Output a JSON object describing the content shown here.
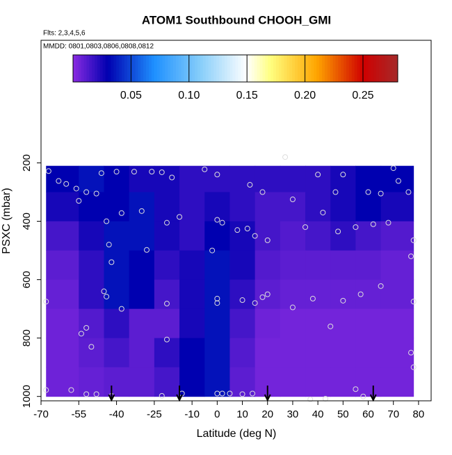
{
  "chart_data": {
    "type": "heatmap",
    "title": "ATOM1 Southbound CHOOH_GMI",
    "subtitle": "Flts: 2,3,4,5,6",
    "annotation": "MMDD: 0801,0803,0806,0808,0812",
    "xlabel": "Latitude (deg N)",
    "ylabel": "PSXC (mbar)",
    "xlim": [
      -70,
      85
    ],
    "ylim": [
      1015,
      -220
    ],
    "xticks": [
      -70,
      -55,
      -40,
      -25,
      -10,
      0,
      10,
      20,
      30,
      40,
      50,
      60,
      70,
      80
    ],
    "yticks": [
      200,
      400,
      600,
      800,
      1000
    ],
    "x_edges": [
      -68,
      -55,
      -45,
      -35,
      -25,
      -15,
      -5,
      5,
      15,
      25,
      35,
      45,
      55,
      65,
      78
    ],
    "y_edges": [
      210,
      300,
      400,
      500,
      600,
      700,
      800,
      900,
      1000
    ],
    "z": [
      [
        0.03,
        0.035,
        0.03,
        0.025,
        0.025,
        0.02,
        0.02,
        0.02,
        0.02,
        0.02,
        0.02,
        0.025,
        0.03,
        0.03
      ],
      [
        0.025,
        0.03,
        0.03,
        0.035,
        0.025,
        0.02,
        0.025,
        0.02,
        0.015,
        0.015,
        0.02,
        0.025,
        0.03,
        0.025
      ],
      [
        0.015,
        0.025,
        0.035,
        0.035,
        0.025,
        0.02,
        0.03,
        0.025,
        0.015,
        0.012,
        0.015,
        0.02,
        0.015,
        0.012
      ],
      [
        0.01,
        0.02,
        0.035,
        0.03,
        0.02,
        0.025,
        0.035,
        0.025,
        0.012,
        0.01,
        0.01,
        0.01,
        0.01,
        0.008
      ],
      [
        0.008,
        0.02,
        0.035,
        0.03,
        0.015,
        0.025,
        0.035,
        0.02,
        0.01,
        0.008,
        0.008,
        0.008,
        0.008,
        0.008
      ],
      [
        0.006,
        0.012,
        0.02,
        0.01,
        0.01,
        0.025,
        0.035,
        0.015,
        0.006,
        0.005,
        0.005,
        0.005,
        0.005,
        0.005
      ],
      [
        0.006,
        0.01,
        0.015,
        0.01,
        0.02,
        0.03,
        0.035,
        0.012,
        0.005,
        0.005,
        0.005,
        0.005,
        0.005,
        0.005
      ],
      [
        0.006,
        0.008,
        0.01,
        0.01,
        0.015,
        0.03,
        0.035,
        0.01,
        0.005,
        0.005,
        0.005,
        0.005,
        0.005,
        0.005
      ]
    ],
    "zlim": [
      0,
      0.28
    ],
    "zticks": [
      0.05,
      {
        "value": 0.1,
        "label": "0.10"
      },
      0.15,
      {
        "value": 0.2,
        "label": "0.20"
      },
      0.25
    ],
    "colormap": [
      [
        0,
        "#8a2be2"
      ],
      [
        0.03,
        "#0000b0"
      ],
      [
        0.07,
        "#1e90ff"
      ],
      [
        0.11,
        "#87cefa"
      ],
      [
        0.15,
        "#ffffff"
      ],
      [
        0.17,
        "#ffff80"
      ],
      [
        0.21,
        "#ffa500"
      ],
      [
        0.25,
        "#d00000"
      ],
      [
        0.28,
        "#a52a2a"
      ]
    ],
    "points": {
      "x": [
        -67,
        -63,
        -60,
        -56,
        -55,
        -52,
        -48,
        -46,
        -44,
        -43,
        -42,
        -40,
        -38,
        -33,
        -30,
        -28,
        -26,
        -22,
        -20,
        -18,
        -15,
        -5,
        0,
        0,
        2,
        -2,
        0,
        0,
        8,
        10,
        13,
        12,
        15,
        18,
        20,
        27,
        30,
        35,
        40,
        42,
        47,
        48,
        50,
        55,
        60,
        62,
        65,
        68,
        70,
        72,
        76,
        78,
        77,
        -68,
        -45,
        -44,
        -38,
        -20,
        -20,
        -54,
        -52,
        -50,
        -58,
        -52,
        -48,
        -42,
        -22,
        -14,
        0,
        2,
        5,
        10,
        14,
        20,
        18,
        15,
        30,
        38,
        45,
        50,
        57,
        65,
        78,
        77,
        78,
        55,
        58,
        43,
        37,
        -68
      ],
      "y": [
        228,
        262,
        272,
        288,
        330,
        300,
        305,
        235,
        400,
        480,
        540,
        230,
        372,
        230,
        365,
        498,
        230,
        232,
        405,
        250,
        385,
        222,
        240,
        395,
        405,
        500,
        665,
        680,
        430,
        670,
        275,
        425,
        450,
        300,
        465,
        180,
        325,
        420,
        240,
        370,
        300,
        435,
        240,
        420,
        300,
        410,
        305,
        405,
        218,
        262,
        300,
        465,
        520,
        675,
        640,
        658,
        700,
        682,
        805,
        785,
        765,
        830,
        978,
        992,
        992,
        998,
        998,
        990,
        990,
        990,
        990,
        992,
        990,
        650,
        660,
        680,
        695,
        665,
        760,
        672,
        650,
        622,
        675,
        850,
        900,
        975,
        1000,
        1008,
        1010,
        978
      ]
    },
    "arrows": [
      -42,
      -15,
      20,
      62
    ]
  }
}
